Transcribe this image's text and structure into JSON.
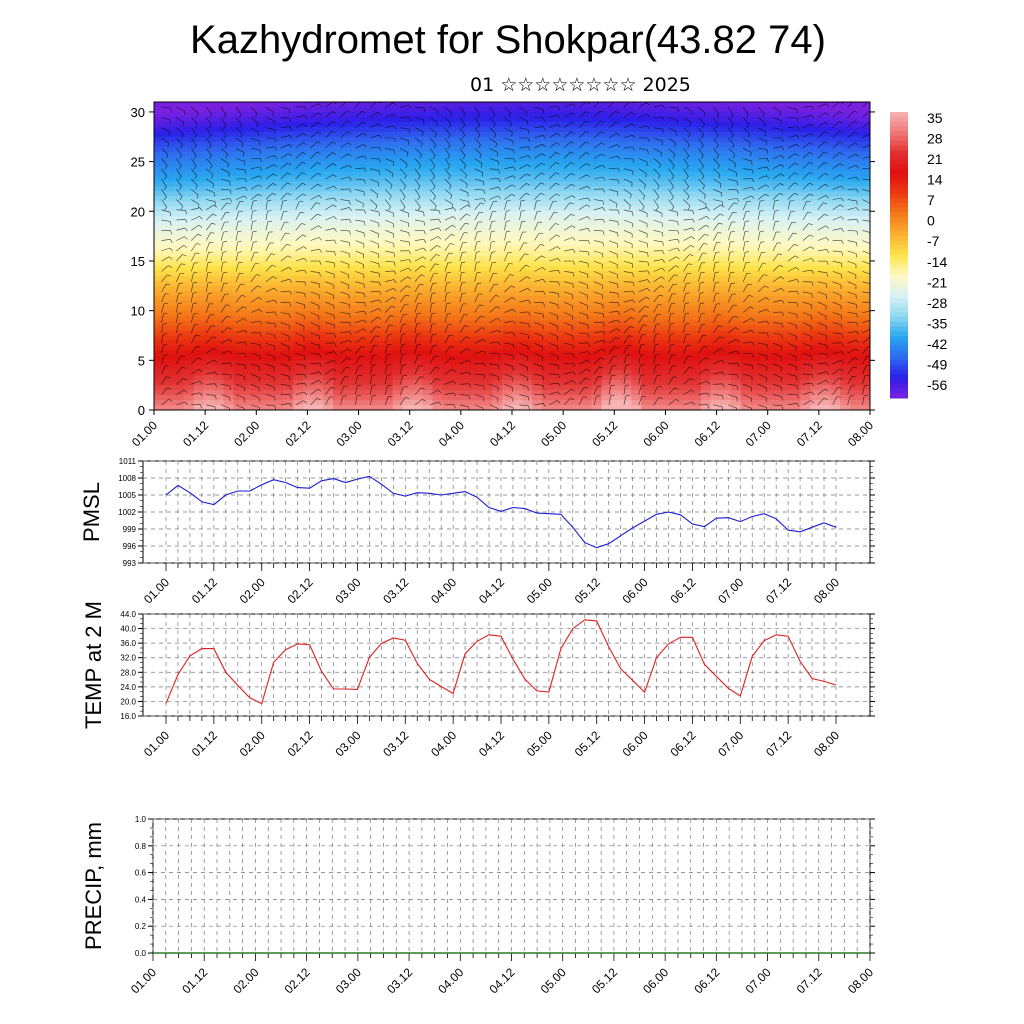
{
  "header": {
    "title": "Kazhydromet for Shokpar(43.82 74)",
    "subtitle": "01 ☆☆☆☆☆☆☆☆ 2025"
  },
  "colors": {
    "pmsl_line": "#1a1ad6",
    "temp_line": "#e02020",
    "colormap": [
      "#7a20e0",
      "#2b1fe8",
      "#2f6bef",
      "#28a8f0",
      "#8fd8f2",
      "#d9f2f4",
      "#fff9c0",
      "#fde34a",
      "#fbb030",
      "#f47a1a",
      "#ec3a12",
      "#e01010",
      "#e23030",
      "#f07878",
      "#f6b4b4"
    ]
  },
  "chart_data": [
    {
      "type": "heatmap",
      "name": "cross-section",
      "x_ticks": [
        "01.00",
        "01.12",
        "02.00",
        "02.12",
        "03.00",
        "03.12",
        "04.00",
        "04.12",
        "05.00",
        "05.12",
        "06.00",
        "06.12",
        "07.00",
        "07.12",
        "08.00"
      ],
      "y_ticks": [
        "0",
        "5",
        "10",
        "15",
        "20",
        "25",
        "30"
      ],
      "ylim": [
        0,
        31
      ],
      "colorbar_labels": [
        "35",
        "28",
        "21",
        "14",
        "7",
        "0",
        "-7",
        "-14",
        "-21",
        "-28",
        "-35",
        "-42",
        "-49",
        "-56"
      ],
      "color_range": [
        -62,
        39
      ]
    },
    {
      "type": "line",
      "name": "pmsl",
      "ylabel": "PMSL",
      "x_ticks": [
        "01.00",
        "01.12",
        "02.00",
        "02.12",
        "03.00",
        "03.12",
        "04.00",
        "04.12",
        "05.00",
        "05.12",
        "06.00",
        "06.12",
        "07.00",
        "07.12",
        "08.00"
      ],
      "y_ticks": [
        "1011",
        "1008",
        "1005",
        "1002",
        "999",
        "996",
        "993"
      ],
      "ylim": [
        993,
        1011
      ],
      "x": [
        0,
        3,
        6,
        9,
        12,
        15,
        18,
        21,
        24,
        27,
        30,
        33,
        36,
        39,
        42,
        45,
        48,
        51,
        54,
        57,
        60,
        63,
        66,
        69,
        72,
        75,
        78,
        81,
        84,
        87,
        90,
        93,
        96,
        99,
        102,
        105,
        108,
        111,
        114,
        117,
        120,
        123,
        126,
        129,
        132,
        135,
        138,
        141,
        144,
        147,
        150,
        153,
        156,
        159,
        162,
        165,
        168
      ],
      "values": [
        1005.0,
        1006.7,
        1005.4,
        1003.8,
        1003.3,
        1005.0,
        1005.7,
        1005.7,
        1006.8,
        1007.7,
        1007.2,
        1006.3,
        1006.2,
        1007.5,
        1007.9,
        1007.2,
        1007.8,
        1008.3,
        1006.9,
        1005.3,
        1004.8,
        1005.4,
        1005.3,
        1005.0,
        1005.3,
        1005.6,
        1004.6,
        1002.8,
        1002.1,
        1002.8,
        1002.6,
        1001.8,
        1001.7,
        1001.6,
        999.3,
        996.6,
        995.7,
        996.4,
        997.8,
        999.2,
        1000.4,
        1001.6,
        1002.0,
        1001.5,
        999.9,
        999.4,
        1000.9,
        1001.0,
        1000.3,
        1001.2,
        1001.7,
        1000.8,
        998.8,
        998.5,
        999.3,
        1000.1,
        999.3
      ]
    },
    {
      "type": "line",
      "name": "temp",
      "ylabel": "TEMP at 2 M",
      "x_ticks": [
        "01.00",
        "01.12",
        "02.00",
        "02.12",
        "03.00",
        "03.12",
        "04.00",
        "04.12",
        "05.00",
        "05.12",
        "06.00",
        "06.12",
        "07.00",
        "07.12",
        "08.00"
      ],
      "y_ticks": [
        "44.0",
        "40.0",
        "36.0",
        "32.0",
        "28.0",
        "24.0",
        "20.0",
        "16.0"
      ],
      "ylim": [
        16,
        44
      ],
      "x": [
        0,
        3,
        6,
        9,
        12,
        15,
        18,
        21,
        24,
        27,
        30,
        33,
        36,
        39,
        42,
        45,
        48,
        51,
        54,
        57,
        60,
        63,
        66,
        69,
        72,
        75,
        78,
        81,
        84,
        87,
        90,
        93,
        96,
        99,
        102,
        105,
        108,
        111,
        114,
        117,
        120,
        123,
        126,
        129,
        132,
        135,
        138,
        141,
        144,
        147,
        150,
        153,
        156,
        159,
        162,
        165,
        168
      ],
      "values": [
        19.5,
        27.4,
        32.5,
        34.5,
        34.5,
        28.0,
        24.4,
        21.0,
        19.4,
        30.8,
        34.2,
        35.8,
        35.6,
        28.3,
        23.4,
        23.4,
        23.3,
        32.1,
        35.9,
        37.4,
        36.8,
        30.4,
        26.1,
        24.1,
        22.2,
        33.1,
        36.5,
        38.3,
        37.9,
        31.6,
        26.1,
        22.9,
        22.6,
        34.4,
        40.0,
        42.4,
        42.1,
        35.0,
        29.0,
        25.8,
        22.5,
        32.0,
        35.8,
        37.6,
        37.6,
        30.2,
        26.9,
        23.6,
        21.5,
        32.4,
        36.7,
        38.3,
        37.9,
        31.0,
        26.3,
        25.5,
        24.5
      ]
    },
    {
      "type": "line",
      "name": "precip",
      "ylabel": "PRECIP, mm",
      "x_ticks": [
        "01.00",
        "01.12",
        "02.00",
        "02.12",
        "03.00",
        "03.12",
        "04.00",
        "04.12",
        "05.00",
        "05.12",
        "06.00",
        "06.12",
        "07.00",
        "07.12",
        "08.00"
      ],
      "y_ticks": [
        "1.0",
        "0.8",
        "0.6",
        "0.4",
        "0.2",
        "0.0"
      ],
      "ylim": [
        0,
        1
      ],
      "values": []
    }
  ]
}
